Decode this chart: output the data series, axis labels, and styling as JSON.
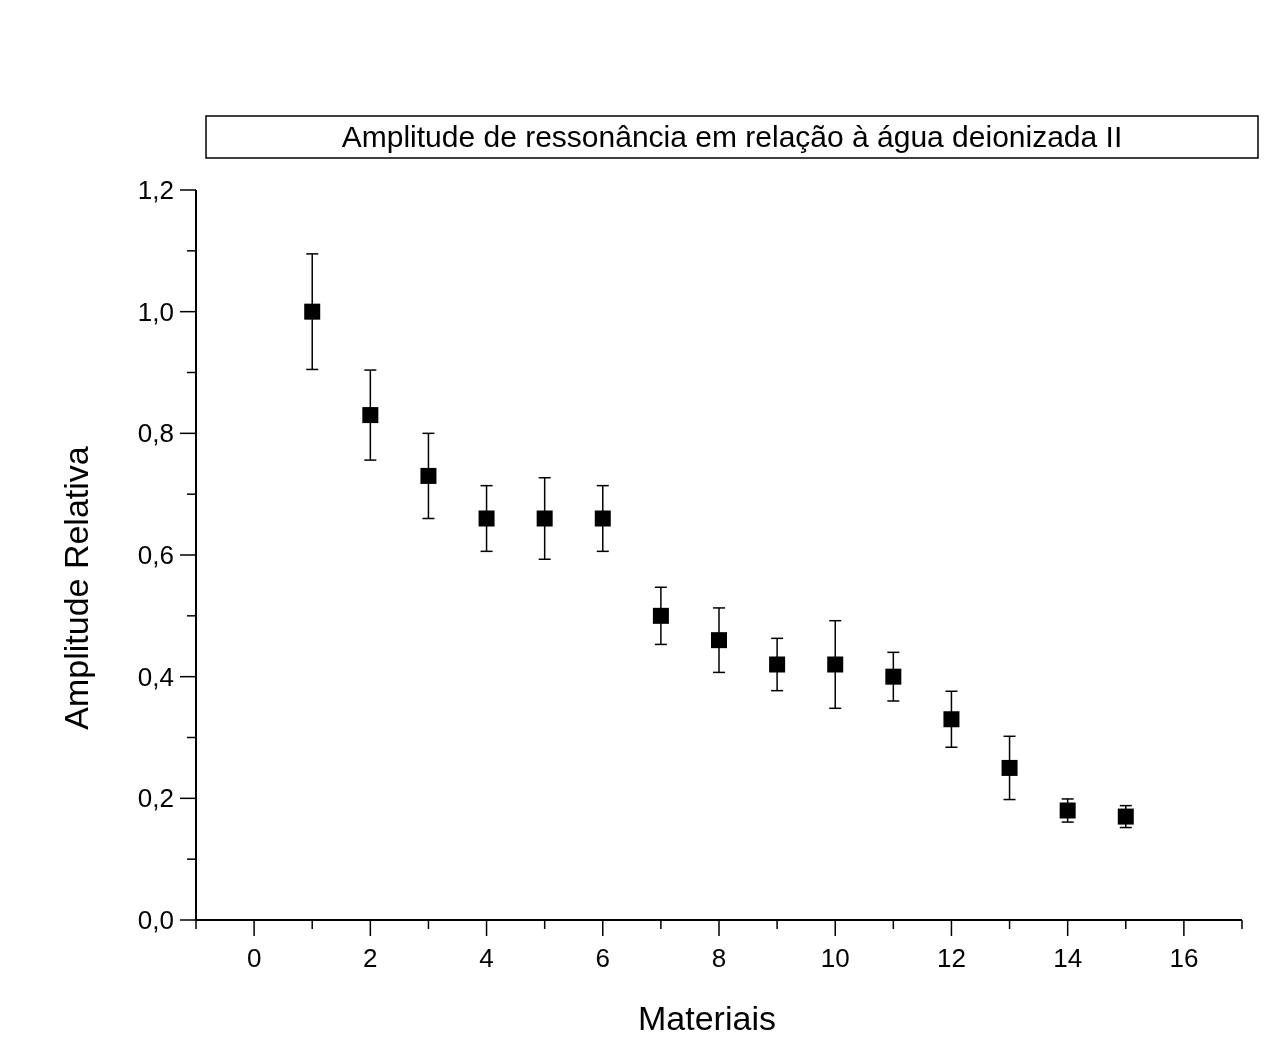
{
  "chart_data": {
    "type": "scatter",
    "title": "Amplitude de ressonância em relação à água deionizada II",
    "xlabel": "Materiais",
    "ylabel": "Amplitude Relativa",
    "x": [
      1,
      2,
      3,
      4,
      5,
      6,
      7,
      8,
      9,
      10,
      11,
      12,
      13,
      14,
      15
    ],
    "series": [
      {
        "color": "#000000",
        "values": [
          1.0,
          0.83,
          0.73,
          0.66,
          0.66,
          0.66,
          0.5,
          0.46,
          0.42,
          0.42,
          0.4,
          0.33,
          0.25,
          0.18,
          0.17
        ],
        "errors": [
          0.095,
          0.074,
          0.07,
          0.054,
          0.067,
          0.054,
          0.047,
          0.053,
          0.043,
          0.072,
          0.04,
          0.046,
          0.052,
          0.019,
          0.018
        ]
      }
    ],
    "marker": "square",
    "grid": false,
    "xlim": [
      -1,
      17
    ],
    "xticks": [
      {
        "value": -1,
        "label": null
      },
      0,
      {
        "value": 1,
        "label": null
      },
      2,
      {
        "value": 3,
        "label": null
      },
      4,
      {
        "value": 5,
        "label": null
      },
      6,
      {
        "value": 7,
        "label": null
      },
      8,
      {
        "value": 9,
        "label": null
      },
      10,
      {
        "value": 11,
        "label": null
      },
      12,
      {
        "value": 13,
        "label": null
      },
      14,
      {
        "value": 15,
        "label": null
      },
      16,
      {
        "value": 17,
        "label": null
      }
    ],
    "ylim": [
      0,
      1.2
    ],
    "yticks": [
      {
        "value": 0,
        "label": "0,0"
      },
      {
        "value": 0.1,
        "label": null
      },
      {
        "value": 0.2,
        "label": "0,2"
      },
      {
        "value": 0.3,
        "label": null
      },
      {
        "value": 0.4,
        "label": "0,4"
      },
      {
        "value": 0.5,
        "label": null
      },
      {
        "value": 0.6,
        "label": "0,6"
      },
      {
        "value": 0.7,
        "label": null
      },
      {
        "value": 0.8,
        "label": "0,8"
      },
      {
        "value": 0.9,
        "label": null
      },
      {
        "value": 1.0,
        "label": "1,0"
      },
      {
        "value": 1.1,
        "label": null
      },
      {
        "value": 1.2,
        "label": "1,2"
      }
    ]
  }
}
